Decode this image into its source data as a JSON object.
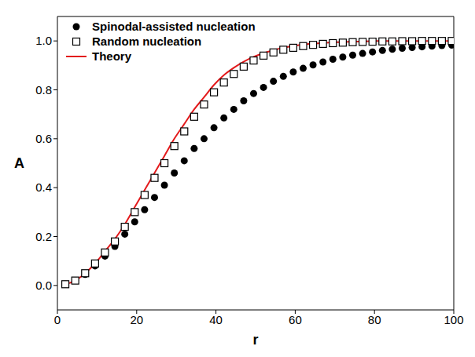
{
  "chart_data": {
    "type": "line",
    "x_label": "r",
    "y_label": "A",
    "x": [
      2,
      4.5,
      7,
      9.5,
      12,
      14.5,
      17,
      19.5,
      22,
      24.5,
      27,
      29.5,
      32,
      34.5,
      37,
      39.5,
      42,
      44.5,
      47,
      49.5,
      52,
      54.5,
      57,
      59.5,
      62,
      64.5,
      67,
      69.5,
      72,
      74.5,
      77,
      79.5,
      82,
      84.5,
      87,
      89.5,
      92,
      94.5,
      97,
      99.5
    ],
    "series": [
      {
        "name": "Spinodal-assisted nucleation",
        "type": "scatter",
        "marker": "circle",
        "color": "#000000",
        "values": [
          0.005,
          0.02,
          0.045,
          0.08,
          0.12,
          0.16,
          0.21,
          0.26,
          0.31,
          0.36,
          0.41,
          0.46,
          0.51,
          0.56,
          0.6,
          0.645,
          0.685,
          0.72,
          0.755,
          0.785,
          0.81,
          0.835,
          0.855,
          0.873,
          0.888,
          0.902,
          0.914,
          0.925,
          0.934,
          0.942,
          0.949,
          0.955,
          0.961,
          0.966,
          0.97,
          0.973,
          0.976,
          0.979,
          0.981,
          0.983
        ]
      },
      {
        "name": "Random nucleation",
        "type": "scatter",
        "marker": "open_square",
        "color": "#000000",
        "values": [
          0.005,
          0.02,
          0.05,
          0.09,
          0.135,
          0.18,
          0.24,
          0.3,
          0.37,
          0.44,
          0.5,
          0.57,
          0.63,
          0.69,
          0.74,
          0.79,
          0.83,
          0.865,
          0.895,
          0.92,
          0.94,
          0.953,
          0.964,
          0.972,
          0.979,
          0.984,
          0.988,
          0.991,
          0.993,
          0.995,
          0.996,
          0.997,
          0.998,
          0.998,
          0.999,
          0.999,
          1.0,
          1.0,
          1.0,
          1.0
        ]
      },
      {
        "name": "Theory",
        "type": "line",
        "line_style": "solid",
        "color": "#e31a1c",
        "values": [
          0.005,
          0.02,
          0.05,
          0.09,
          0.14,
          0.19,
          0.25,
          0.32,
          0.39,
          0.46,
          0.53,
          0.6,
          0.66,
          0.72,
          0.77,
          0.82,
          0.86,
          0.89,
          0.915,
          0.935,
          0.95,
          0.962,
          0.972,
          0.979,
          0.985,
          0.989,
          0.992,
          0.994,
          0.996,
          0.997,
          0.998,
          0.999,
          1.0,
          1.0,
          1.0,
          1.0,
          1.0,
          1.0,
          1.0,
          1.0
        ]
      }
    ],
    "xlim": [
      0,
      100
    ],
    "xticks": [
      0,
      20,
      40,
      60,
      80,
      100
    ],
    "ylim": [
      -0.1,
      1.1
    ],
    "yticks": [
      {
        "value": 0,
        "label": "0.0"
      },
      0.2,
      0.4,
      0.6,
      0.8,
      {
        "value": 1,
        "label": "1.0"
      }
    ],
    "legend": "top-left",
    "grid": false
  }
}
